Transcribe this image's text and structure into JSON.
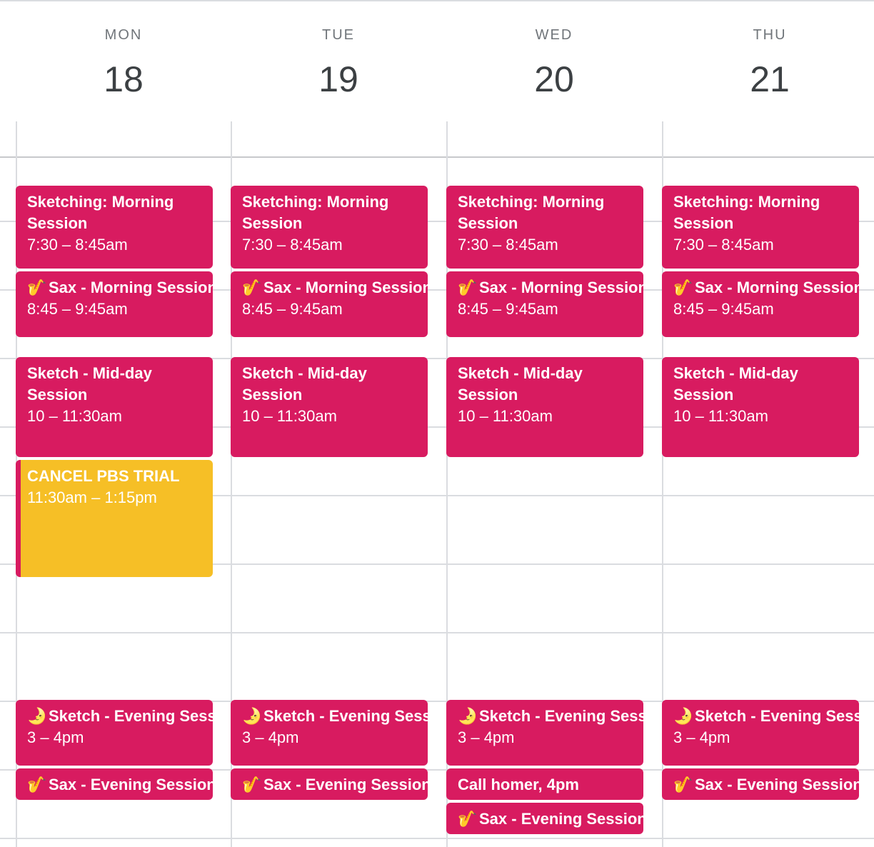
{
  "days": [
    {
      "name": "MON",
      "date": "18",
      "events": [
        {
          "title": "Sketching: Morning Session",
          "time": "7:30 – 8:45am",
          "icon": ""
        },
        {
          "title": "Sax - Morning Session",
          "time": "8:45 – 9:45am",
          "icon": "saxophone-icon",
          "emoji": "🎷"
        },
        {
          "title": "Sketch - Mid-day Session",
          "time": "10 – 11:30am",
          "icon": ""
        },
        {
          "title": "CANCEL PBS TRIAL",
          "time": "11:30am – 1:15pm",
          "icon": "",
          "color": "#f6bf26"
        },
        {
          "title": "Sketch - Evening Session",
          "time": "3 – 4pm",
          "icon": "moon-icon",
          "emoji": "🌛"
        },
        {
          "title": "Sax - Evening Session",
          "time": "",
          "icon": "saxophone-icon",
          "emoji": "🎷"
        }
      ]
    },
    {
      "name": "TUE",
      "date": "19",
      "events": [
        {
          "title": "Sketching: Morning Session",
          "time": "7:30 – 8:45am",
          "icon": ""
        },
        {
          "title": "Sax - Morning Session",
          "time": "8:45 – 9:45am",
          "icon": "saxophone-icon",
          "emoji": "🎷"
        },
        {
          "title": "Sketch - Mid-day Session",
          "time": "10 – 11:30am",
          "icon": ""
        },
        {
          "title": "Sketch - Evening Session",
          "time": "3 – 4pm",
          "icon": "moon-icon",
          "emoji": "🌛"
        },
        {
          "title": "Sax - Evening Session",
          "time": "",
          "icon": "saxophone-icon",
          "emoji": "🎷"
        }
      ]
    },
    {
      "name": "WED",
      "date": "20",
      "events": [
        {
          "title": "Sketching: Morning Session",
          "time": "7:30 – 8:45am",
          "icon": ""
        },
        {
          "title": "Sax - Morning Session",
          "time": "8:45 – 9:45am",
          "icon": "saxophone-icon",
          "emoji": "🎷"
        },
        {
          "title": "Sketch - Mid-day Session",
          "time": "10 – 11:30am",
          "icon": ""
        },
        {
          "title": "Sketch - Evening Session",
          "time": "3 – 4pm",
          "icon": "moon-icon",
          "emoji": "🌛"
        },
        {
          "title": "Call homer, 4pm",
          "time": "",
          "icon": ""
        },
        {
          "title": "Sax - Evening Session",
          "time": "",
          "icon": "saxophone-icon",
          "emoji": "🎷"
        }
      ]
    },
    {
      "name": "THU",
      "date": "21",
      "events": [
        {
          "title": "Sketching: Morning Session",
          "time": "7:30 – 8:45am",
          "icon": ""
        },
        {
          "title": "Sax - Morning Session",
          "time": "8:45 – 9:45am",
          "icon": "saxophone-icon",
          "emoji": "🎷"
        },
        {
          "title": "Sketch - Mid-day Session",
          "time": "10 – 11:30am",
          "icon": ""
        },
        {
          "title": "Sketch - Evening Session",
          "time": "3 – 4pm",
          "icon": "moon-icon",
          "emoji": "🌛"
        },
        {
          "title": "Sax - Evening Session",
          "time": "",
          "icon": "saxophone-icon",
          "emoji": "🎷"
        }
      ]
    }
  ],
  "colors": {
    "event": "#d81b60",
    "task": "#f6bf26"
  }
}
